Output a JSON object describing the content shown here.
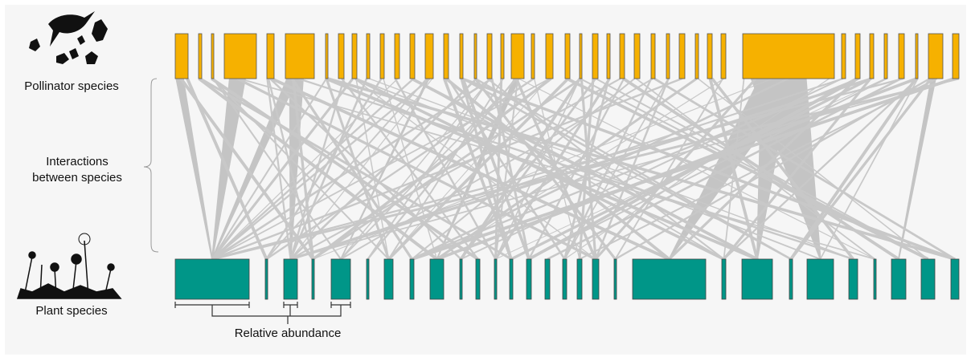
{
  "labels": {
    "pollinators": "Pollinator species",
    "interactions": [
      "Interactions",
      "between species"
    ],
    "plants": "Plant species",
    "abundance": "Relative abundance"
  }
}
